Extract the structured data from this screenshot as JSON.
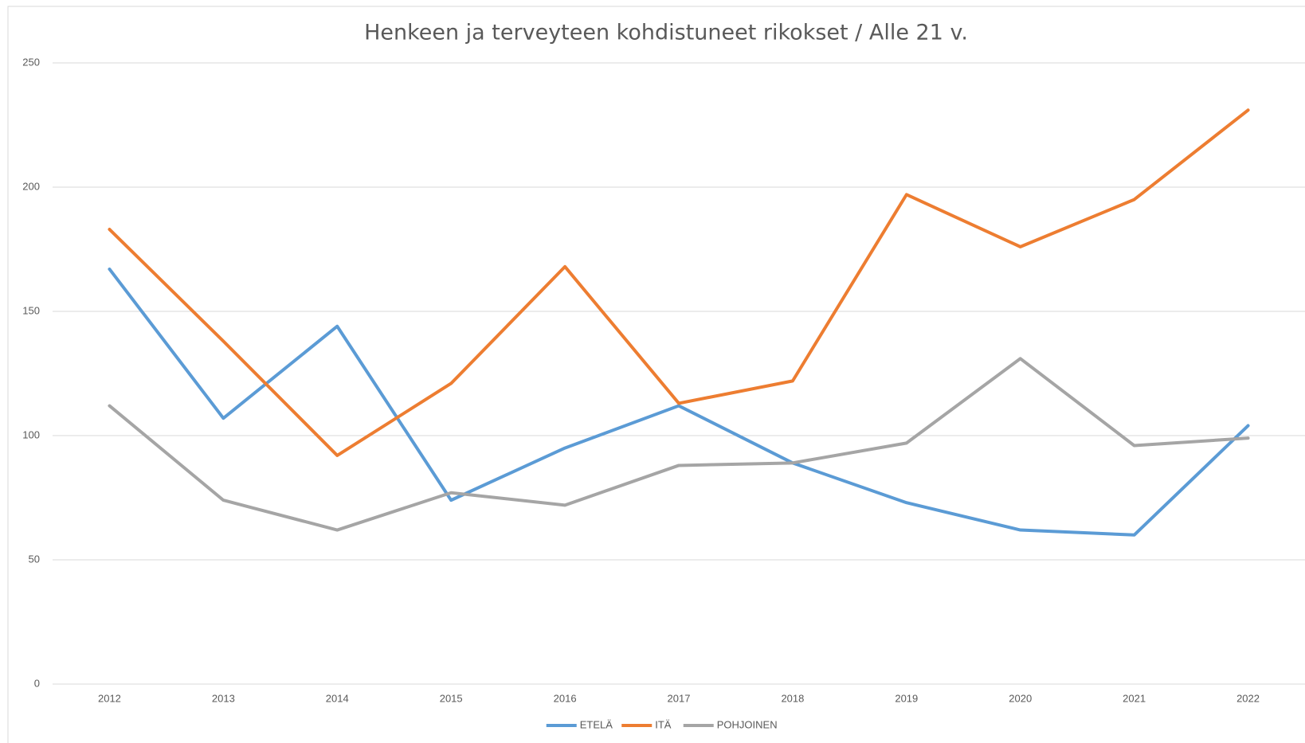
{
  "chart_data": {
    "type": "line",
    "title": "Henkeen ja terveyteen kohdistuneet rikokset / Alle 21 v.",
    "categories": [
      "2012",
      "2013",
      "2014",
      "2015",
      "2016",
      "2017",
      "2018",
      "2019",
      "2020",
      "2021",
      "2022"
    ],
    "series": [
      {
        "name": "ETELÄ",
        "color": "#5b9bd5",
        "values": [
          167,
          107,
          144,
          74,
          95,
          112,
          89,
          73,
          62,
          60,
          104
        ]
      },
      {
        "name": "ITÄ",
        "color": "#ed7d31",
        "values": [
          183,
          138,
          92,
          121,
          168,
          113,
          122,
          197,
          176,
          195,
          231
        ]
      },
      {
        "name": "POHJOINEN",
        "color": "#a5a5a5",
        "values": [
          112,
          74,
          62,
          77,
          72,
          88,
          89,
          97,
          131,
          96,
          99
        ]
      }
    ],
    "ylim": [
      0,
      250
    ],
    "yticks": [
      0,
      50,
      100,
      150,
      200,
      250
    ],
    "grid": true,
    "legend": "bottom"
  }
}
